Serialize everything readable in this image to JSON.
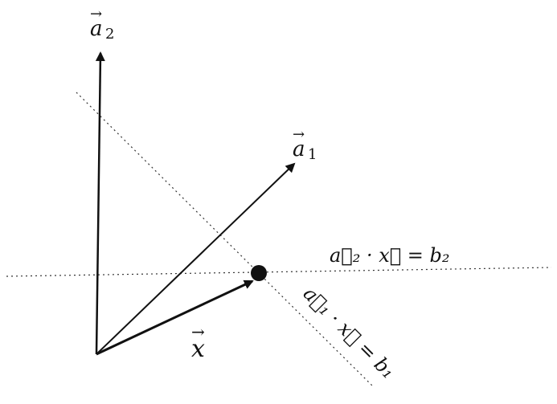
{
  "labels": {
    "a2": {
      "base": "a",
      "sub": "2"
    },
    "a1": {
      "base": "a",
      "sub": "1"
    },
    "x": {
      "base": "x"
    },
    "constraint_2": "a⃗₂ · x⃗ = b₂",
    "constraint_1": "a⃗₁ · x⃗ = b₁"
  },
  "colors": {
    "ink": "#111111",
    "dotted": "#333333"
  }
}
